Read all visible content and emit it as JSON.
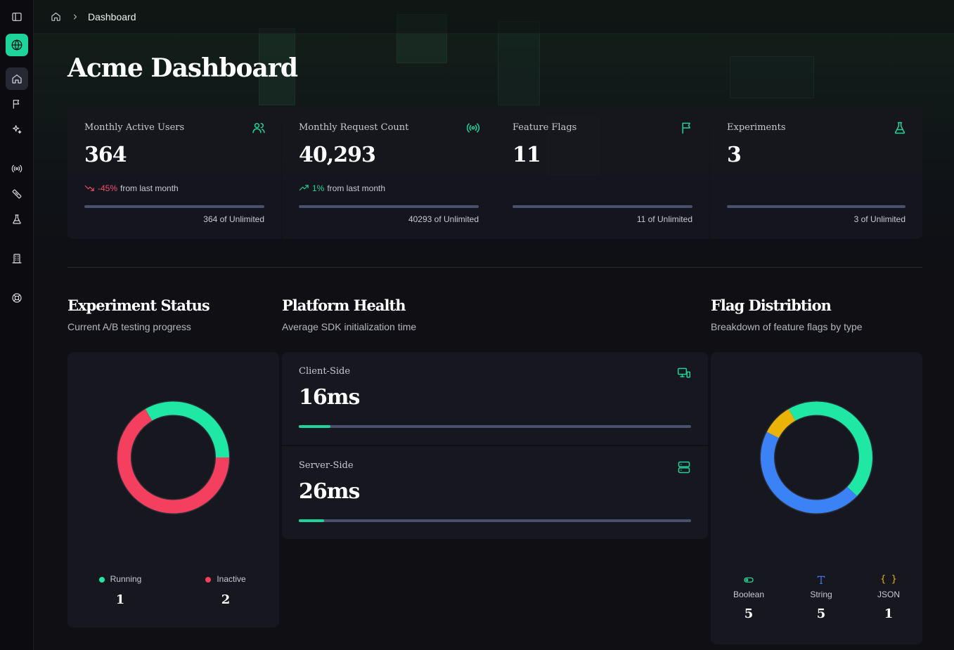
{
  "breadcrumb": {
    "current": "Dashboard"
  },
  "page": {
    "title": "Acme Dashboard"
  },
  "stats": [
    {
      "label": "Monthly Active Users",
      "value": "364",
      "change": "-45%",
      "change_suffix": "from last month",
      "trend": "down",
      "limit": "364 of Unlimited",
      "icon": "users-icon"
    },
    {
      "label": "Monthly Request Count",
      "value": "40,293",
      "change": "1%",
      "change_suffix": "from last month",
      "trend": "up",
      "limit": "40293 of Unlimited",
      "icon": "radio-icon"
    },
    {
      "label": "Feature Flags",
      "value": "11",
      "limit": "11 of Unlimited",
      "icon": "flag-icon"
    },
    {
      "label": "Experiments",
      "value": "3",
      "limit": "3 of Unlimited",
      "icon": "flask-icon"
    }
  ],
  "experiment_status": {
    "title": "Experiment Status",
    "subtitle": "Current A/B testing progress",
    "legend": [
      {
        "label": "Running",
        "value": "1",
        "color": "#1ee8a3"
      },
      {
        "label": "Inactive",
        "value": "2",
        "color": "#f43f5e"
      }
    ]
  },
  "platform_health": {
    "title": "Platform Health",
    "subtitle": "Average SDK initialization time",
    "items": [
      {
        "label": "Client-Side",
        "value": "16ms",
        "progress_fraction": 0.08,
        "icon": "devices-icon"
      },
      {
        "label": "Server-Side",
        "value": "26ms",
        "progress_fraction": 0.065,
        "icon": "server-icon"
      }
    ]
  },
  "flag_distribution": {
    "title": "Flag Distribtion",
    "subtitle": "Breakdown of feature flags by type",
    "types": [
      {
        "label": "Boolean",
        "value": "5",
        "color": "#1ee8a3",
        "icon": "toggle-icon"
      },
      {
        "label": "String",
        "value": "5",
        "color": "#3b82f6",
        "icon": "text-icon"
      },
      {
        "label": "JSON",
        "value": "1",
        "color": "#eab308",
        "icon": "braces-icon",
        "glyph": "{ }"
      }
    ]
  },
  "chart_data": [
    {
      "type": "pie",
      "categories": [
        "Running",
        "Inactive"
      ],
      "values": [
        1,
        2
      ],
      "colors": [
        "#1ee8a3",
        "#f43f5e"
      ],
      "title": "Experiment Status"
    },
    {
      "type": "pie",
      "categories": [
        "Boolean",
        "String",
        "JSON"
      ],
      "values": [
        5,
        5,
        1
      ],
      "colors": [
        "#1ee8a3",
        "#3b82f6",
        "#eab308"
      ],
      "title": "Flag Distribtion"
    }
  ]
}
